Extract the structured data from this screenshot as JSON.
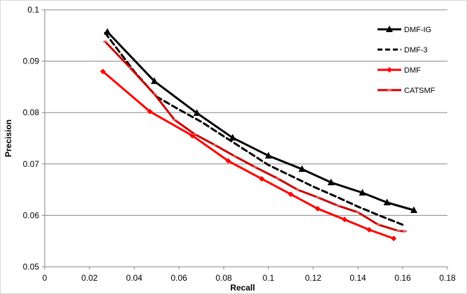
{
  "chart_data": {
    "type": "line",
    "xlabel": "Recall",
    "ylabel": "Precision",
    "xlim": [
      0,
      0.18
    ],
    "ylim": [
      0.05,
      0.1
    ],
    "x_ticks": [
      "0",
      "0.02",
      "0.04",
      "0.06",
      "0.08",
      "0.1",
      "0.12",
      "0.14",
      "0.16",
      "0.18"
    ],
    "y_ticks": [
      "0.05",
      "0.06",
      "0.07",
      "0.08",
      "0.09",
      "0.1"
    ],
    "grid": "horizontal",
    "legend_position": "right",
    "series": [
      {
        "name": "DMF-IG",
        "color": "#000000",
        "style": "solid",
        "marker": "triangle",
        "points": [
          [
            0.028,
            0.0957
          ],
          [
            0.049,
            0.0861
          ],
          [
            0.068,
            0.0799
          ],
          [
            0.084,
            0.0751
          ],
          [
            0.1,
            0.0716
          ],
          [
            0.115,
            0.069
          ],
          [
            0.128,
            0.0664
          ],
          [
            0.142,
            0.0644
          ],
          [
            0.153,
            0.0625
          ],
          [
            0.165,
            0.061
          ]
        ]
      },
      {
        "name": "DMF-3",
        "color": "#000000",
        "style": "dashed",
        "marker": "none",
        "points": [
          [
            0.027,
            0.0955
          ],
          [
            0.04,
            0.088
          ],
          [
            0.05,
            0.0831
          ],
          [
            0.06,
            0.0806
          ],
          [
            0.07,
            0.0782
          ],
          [
            0.08,
            0.0754
          ],
          [
            0.09,
            0.0726
          ],
          [
            0.1,
            0.0698
          ],
          [
            0.11,
            0.0677
          ],
          [
            0.12,
            0.0656
          ],
          [
            0.13,
            0.0637
          ],
          [
            0.14,
            0.0617
          ],
          [
            0.15,
            0.0599
          ],
          [
            0.161,
            0.058
          ]
        ]
      },
      {
        "name": "DMF",
        "color": "#ff0000",
        "style": "solid",
        "marker": "diamond",
        "points": [
          [
            0.026,
            0.088
          ],
          [
            0.047,
            0.0802
          ],
          [
            0.066,
            0.0755
          ],
          [
            0.082,
            0.0706
          ],
          [
            0.097,
            0.0671
          ],
          [
            0.11,
            0.0641
          ],
          [
            0.122,
            0.0613
          ],
          [
            0.134,
            0.0592
          ],
          [
            0.145,
            0.0572
          ],
          [
            0.156,
            0.0555
          ]
        ]
      },
      {
        "name": "CATSMF",
        "color": "#cc0000",
        "style": "solid",
        "marker": "dash",
        "points": [
          [
            0.027,
            0.0938
          ],
          [
            0.038,
            0.0888
          ],
          [
            0.049,
            0.0836
          ],
          [
            0.058,
            0.0786
          ],
          [
            0.067,
            0.0758
          ],
          [
            0.076,
            0.0737
          ],
          [
            0.085,
            0.0715
          ],
          [
            0.094,
            0.0694
          ],
          [
            0.104,
            0.0672
          ],
          [
            0.113,
            0.065
          ],
          [
            0.122,
            0.0635
          ],
          [
            0.131,
            0.0619
          ],
          [
            0.14,
            0.0606
          ],
          [
            0.149,
            0.0582
          ],
          [
            0.158,
            0.057
          ],
          [
            0.161,
            0.0569
          ]
        ]
      }
    ]
  }
}
